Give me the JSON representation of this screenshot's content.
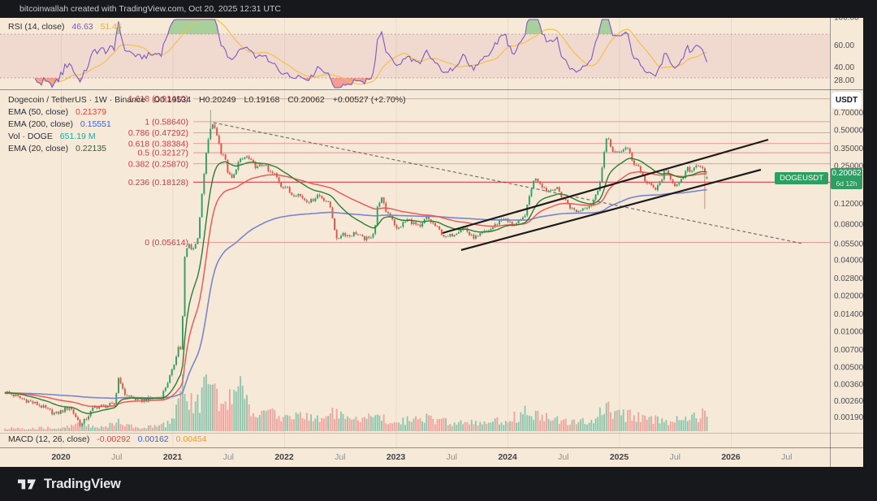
{
  "header": {
    "title": "bitcoinwallah created with TradingView.com, Oct 20, 2025 12:31 UTC"
  },
  "footer": {
    "brand": "TradingView"
  },
  "rsi_pane": {
    "legend": {
      "label": "RSI (14, close)",
      "value": "46.63",
      "ma_value": "51.46"
    },
    "value_color": "#7e57c2",
    "ma_color": "#e8b033"
  },
  "main_pane": {
    "legend": {
      "symbol": "Dogecoin / TetherUS · 1W · Binance",
      "ohlc_o": "O0.19534",
      "ohlc_h": "H0.20249",
      "ohlc_l": "L0.19168",
      "ohlc_c": "C0.20062",
      "change": "+0.00527 (+2.70%)"
    },
    "indicators": [
      {
        "label": "EMA (50, close)",
        "value": "0.21379",
        "color": "#e0453c"
      },
      {
        "label": "EMA (200, close)",
        "value": "0.15551",
        "color": "#2962ff"
      },
      {
        "label": "Vol · DOGE",
        "value": "651.19 M",
        "color": "#26a69a"
      },
      {
        "label": "EMA (20, close)",
        "value": "0.22135",
        "color": "#2e5e38"
      }
    ]
  },
  "macd_pane": {
    "label": "MACD (12, 26, close)",
    "values": [
      {
        "v": "-0.00292",
        "color": "#e0453c"
      },
      {
        "v": "0.00162",
        "color": "#2962ff"
      },
      {
        "v": "0.00454",
        "color": "#f59a23"
      }
    ]
  },
  "price_axis": {
    "currency_button": "USDT",
    "last_price": "0.20062",
    "countdown": "6d 12h",
    "symbol_tag": "DOGEUSDT"
  },
  "chart_data": {
    "type": "candlestick",
    "title": "Dogecoin / TetherUS",
    "symbol": "DOGEUSDT",
    "interval": "1W",
    "exchange": "Binance",
    "scale": "log",
    "current_ohlc": {
      "open": 0.19534,
      "high": 0.20249,
      "low": 0.19168,
      "close": 0.20062,
      "change": 0.00527,
      "change_pct": 2.7
    },
    "xlim": [
      2019.45,
      2026.9
    ],
    "x_ticks": [
      {
        "label": "2020",
        "t": 2020,
        "major": true
      },
      {
        "label": "Jul",
        "t": 2020.5,
        "major": false
      },
      {
        "label": "2021",
        "t": 2021,
        "major": true
      },
      {
        "label": "Jul",
        "t": 2021.5,
        "major": false
      },
      {
        "label": "2022",
        "t": 2022,
        "major": true
      },
      {
        "label": "Jul",
        "t": 2022.5,
        "major": false
      },
      {
        "label": "2023",
        "t": 2023,
        "major": true
      },
      {
        "label": "Jul",
        "t": 2023.5,
        "major": false
      },
      {
        "label": "2024",
        "t": 2024,
        "major": true
      },
      {
        "label": "Jul",
        "t": 2024.5,
        "major": false
      },
      {
        "label": "2025",
        "t": 2025,
        "major": true
      },
      {
        "label": "Jul",
        "t": 2025.5,
        "major": false
      },
      {
        "label": "2026",
        "t": 2026,
        "major": true
      },
      {
        "label": "Jul",
        "t": 2026.5,
        "major": false
      }
    ],
    "y_ticks": [
      {
        "label": "0.70000",
        "p": 0.7
      },
      {
        "label": "0.50000",
        "p": 0.5
      },
      {
        "label": "0.35000",
        "p": 0.35
      },
      {
        "label": "0.25000",
        "p": 0.25
      },
      {
        "label": "0.12000",
        "p": 0.12
      },
      {
        "label": "0.08000",
        "p": 0.08
      },
      {
        "label": "0.05500",
        "p": 0.055
      },
      {
        "label": "0.04000",
        "p": 0.04
      },
      {
        "label": "0.02800",
        "p": 0.028
      },
      {
        "label": "0.02000",
        "p": 0.02
      },
      {
        "label": "0.01400",
        "p": 0.014
      },
      {
        "label": "0.01000",
        "p": 0.01
      },
      {
        "label": "0.00700",
        "p": 0.007
      },
      {
        "label": "0.00500",
        "p": 0.005
      },
      {
        "label": "0.00360",
        "p": 0.0036
      },
      {
        "label": "0.00260",
        "p": 0.0026
      },
      {
        "label": "0.00190",
        "p": 0.0019
      }
    ],
    "rsi_ticks": [
      {
        "label": "100.00",
        "v": 100
      },
      {
        "label": "60.00",
        "v": 60
      },
      {
        "label": "40.00",
        "v": 40
      },
      {
        "label": "28.00",
        "v": 28
      }
    ],
    "rsi_levels": {
      "upper": 70,
      "lower": 30
    },
    "fib_levels": [
      {
        "label": "1.618 (0.91410)",
        "price": 0.9141,
        "highlight": false
      },
      {
        "label": "1 (0.58640)",
        "price": 0.5864,
        "highlight": false
      },
      {
        "label": "0.786 (0.47292)",
        "price": 0.47292,
        "highlight": false
      },
      {
        "label": "0.618 (0.38384)",
        "price": 0.38384,
        "highlight": false
      },
      {
        "label": "0.5 (0.32127)",
        "price": 0.32127,
        "highlight": false
      },
      {
        "label": "0.382 (0.25870)",
        "price": 0.2587,
        "highlight": false
      },
      {
        "label": "0.236 (0.18128)",
        "price": 0.18128,
        "highlight": true
      },
      {
        "label": "0 (0.05614)",
        "price": 0.05614,
        "highlight": false
      }
    ],
    "trendlines": [
      {
        "t1": 2023.418,
        "p1": 0.0675,
        "t2": 2026.335,
        "p2": 0.4138
      },
      {
        "t1": 2023.585,
        "p1": 0.0485,
        "t2": 2026.269,
        "p2": 0.2309
      }
    ],
    "dashed_line": {
      "t1": 2021.367,
      "p1": 0.576,
      "t2": 2026.64,
      "p2": 0.055
    },
    "price_keyframes": [
      [
        2019.5,
        0.0031
      ],
      [
        2019.65,
        0.0027
      ],
      [
        2019.8,
        0.0024
      ],
      [
        2019.95,
        0.002
      ],
      [
        2020.08,
        0.0023
      ],
      [
        2020.18,
        0.0016
      ],
      [
        2020.3,
        0.0023
      ],
      [
        2020.48,
        0.0024
      ],
      [
        2020.52,
        0.0043
      ],
      [
        2020.56,
        0.003
      ],
      [
        2020.7,
        0.0026
      ],
      [
        2020.9,
        0.0028
      ],
      [
        2021.0,
        0.0047
      ],
      [
        2021.05,
        0.0074
      ],
      [
        2021.08,
        0.007
      ],
      [
        2021.11,
        0.042
      ],
      [
        2021.14,
        0.055
      ],
      [
        2021.18,
        0.049
      ],
      [
        2021.22,
        0.057
      ],
      [
        2021.26,
        0.13
      ],
      [
        2021.3,
        0.31
      ],
      [
        2021.34,
        0.52
      ],
      [
        2021.37,
        0.55
      ],
      [
        2021.4,
        0.45
      ],
      [
        2021.43,
        0.33
      ],
      [
        2021.46,
        0.31
      ],
      [
        2021.5,
        0.21
      ],
      [
        2021.54,
        0.19
      ],
      [
        2021.58,
        0.26
      ],
      [
        2021.62,
        0.28
      ],
      [
        2021.66,
        0.3
      ],
      [
        2021.7,
        0.27
      ],
      [
        2021.76,
        0.24
      ],
      [
        2021.82,
        0.26
      ],
      [
        2021.86,
        0.22
      ],
      [
        2021.92,
        0.21
      ],
      [
        2021.97,
        0.17
      ],
      [
        2022.02,
        0.165
      ],
      [
        2022.06,
        0.143
      ],
      [
        2022.12,
        0.145
      ],
      [
        2022.18,
        0.13
      ],
      [
        2022.24,
        0.125
      ],
      [
        2022.3,
        0.142
      ],
      [
        2022.36,
        0.13
      ],
      [
        2022.41,
        0.115
      ],
      [
        2022.44,
        0.085
      ],
      [
        2022.47,
        0.058
      ],
      [
        2022.52,
        0.068
      ],
      [
        2022.58,
        0.064
      ],
      [
        2022.64,
        0.068
      ],
      [
        2022.7,
        0.061
      ],
      [
        2022.76,
        0.06
      ],
      [
        2022.81,
        0.072
      ],
      [
        2022.84,
        0.12
      ],
      [
        2022.87,
        0.133
      ],
      [
        2022.91,
        0.104
      ],
      [
        2022.96,
        0.094
      ],
      [
        2023.01,
        0.071
      ],
      [
        2023.06,
        0.081
      ],
      [
        2023.11,
        0.088
      ],
      [
        2023.17,
        0.08
      ],
      [
        2023.22,
        0.074
      ],
      [
        2023.27,
        0.092
      ],
      [
        2023.33,
        0.081
      ],
      [
        2023.39,
        0.071
      ],
      [
        2023.45,
        0.061
      ],
      [
        2023.51,
        0.066
      ],
      [
        2023.57,
        0.072
      ],
      [
        2023.61,
        0.077
      ],
      [
        2023.67,
        0.063
      ],
      [
        2023.73,
        0.062
      ],
      [
        2023.79,
        0.068
      ],
      [
        2023.85,
        0.073
      ],
      [
        2023.91,
        0.082
      ],
      [
        2023.96,
        0.092
      ],
      [
        2024.01,
        0.082
      ],
      [
        2024.07,
        0.08
      ],
      [
        2024.13,
        0.086
      ],
      [
        2024.17,
        0.105
      ],
      [
        2024.21,
        0.16
      ],
      [
        2024.25,
        0.2
      ],
      [
        2024.28,
        0.185
      ],
      [
        2024.32,
        0.165
      ],
      [
        2024.36,
        0.152
      ],
      [
        2024.41,
        0.162
      ],
      [
        2024.45,
        0.157
      ],
      [
        2024.49,
        0.135
      ],
      [
        2024.53,
        0.124
      ],
      [
        2024.57,
        0.108
      ],
      [
        2024.63,
        0.102
      ],
      [
        2024.69,
        0.112
      ],
      [
        2024.75,
        0.118
      ],
      [
        2024.8,
        0.145
      ],
      [
        2024.84,
        0.215
      ],
      [
        2024.88,
        0.4
      ],
      [
        2024.91,
        0.42
      ],
      [
        2024.94,
        0.325
      ],
      [
        2024.98,
        0.315
      ],
      [
        2025.02,
        0.335
      ],
      [
        2025.05,
        0.355
      ],
      [
        2025.09,
        0.33
      ],
      [
        2025.13,
        0.26
      ],
      [
        2025.17,
        0.25
      ],
      [
        2025.21,
        0.205
      ],
      [
        2025.25,
        0.175
      ],
      [
        2025.29,
        0.168
      ],
      [
        2025.33,
        0.155
      ],
      [
        2025.37,
        0.185
      ],
      [
        2025.41,
        0.225
      ],
      [
        2025.45,
        0.205
      ],
      [
        2025.49,
        0.175
      ],
      [
        2025.53,
        0.168
      ],
      [
        2025.57,
        0.195
      ],
      [
        2025.61,
        0.235
      ],
      [
        2025.65,
        0.225
      ],
      [
        2025.69,
        0.26
      ],
      [
        2025.72,
        0.248
      ],
      [
        2025.75,
        0.243
      ],
      [
        2025.775,
        0.197
      ],
      [
        2025.805,
        0.20062
      ]
    ],
    "volume_keyframes": [
      [
        2019.5,
        0.05
      ],
      [
        2020.0,
        0.06
      ],
      [
        2020.18,
        0.13
      ],
      [
        2020.35,
        0.07
      ],
      [
        2020.52,
        0.16
      ],
      [
        2020.7,
        0.06
      ],
      [
        2020.95,
        0.12
      ],
      [
        2021.05,
        0.5
      ],
      [
        2021.1,
        1.0
      ],
      [
        2021.16,
        0.55
      ],
      [
        2021.22,
        0.45
      ],
      [
        2021.3,
        0.85
      ],
      [
        2021.37,
        0.72
      ],
      [
        2021.44,
        0.5
      ],
      [
        2021.52,
        0.55
      ],
      [
        2021.6,
        0.88
      ],
      [
        2021.68,
        0.45
      ],
      [
        2021.8,
        0.3
      ],
      [
        2021.95,
        0.3
      ],
      [
        2022.1,
        0.27
      ],
      [
        2022.3,
        0.23
      ],
      [
        2022.45,
        0.32
      ],
      [
        2022.6,
        0.18
      ],
      [
        2022.85,
        0.28
      ],
      [
        2023.0,
        0.17
      ],
      [
        2023.27,
        0.24
      ],
      [
        2023.5,
        0.15
      ],
      [
        2023.75,
        0.14
      ],
      [
        2023.95,
        0.19
      ],
      [
        2024.2,
        0.36
      ],
      [
        2024.35,
        0.24
      ],
      [
        2024.55,
        0.17
      ],
      [
        2024.75,
        0.19
      ],
      [
        2024.88,
        0.42
      ],
      [
        2025.0,
        0.3
      ],
      [
        2025.15,
        0.27
      ],
      [
        2025.3,
        0.21
      ],
      [
        2025.45,
        0.19
      ],
      [
        2025.6,
        0.21
      ],
      [
        2025.77,
        0.3
      ],
      [
        2025.805,
        0.15
      ]
    ],
    "wick_overrides": [
      {
        "t": 2021.34,
        "h": 0.738
      },
      {
        "t": 2025.767,
        "l": 0.108
      }
    ],
    "last_candle": {
      "o": 0.19534,
      "h": 0.20249,
      "l": 0.19168,
      "c": 0.20062
    },
    "colors": {
      "bg": "#f6e9d8",
      "candle_up": "#2f9e63",
      "candle_down": "#de5349",
      "vol_up": "#8fc7ae",
      "vol_down": "#f2a49e",
      "ema20": "#2e7d32",
      "ema50": "#ef5350",
      "ema200": "#7986cb",
      "rsi": "#7e57c2",
      "rsi_ma": "#f0c04a",
      "rsi_fill_hi": "rgba(102,187,106,0.55)",
      "rsi_fill_lo": "rgba(239,83,80,0.5)",
      "fib": "#dd5862",
      "fib_hi": "#e03748",
      "fib_label": "#cf3a46",
      "trend": "#1b1b1b",
      "dashed": "#4a4a4a",
      "tag": "#2f9e63"
    }
  }
}
